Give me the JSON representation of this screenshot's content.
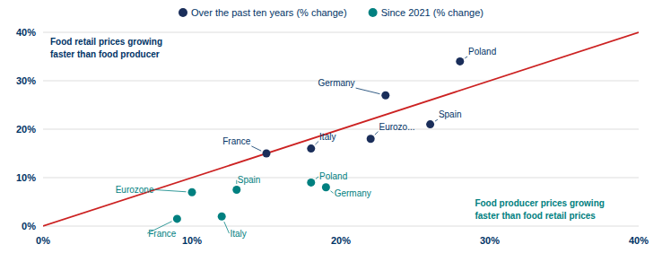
{
  "chart_data": {
    "type": "scatter",
    "color": "#003366",
    "series": [
      {
        "type": "line",
        "color": "#cc2222",
        "x": [
          0,
          40
        ],
        "values": [
          0,
          40
        ]
      },
      {
        "name": "Over the past ten years (% change)",
        "color": "#1a2e5a",
        "x": [
          15,
          18,
          22,
          26,
          23,
          28
        ],
        "values": [
          15,
          16,
          18,
          21,
          27,
          34
        ],
        "labels": [
          "France",
          "Italy",
          "Eurozo...",
          "Spain",
          "Germany",
          "Poland"
        ]
      },
      {
        "name": "Since 2021 (% change)",
        "color": "#008080",
        "x": [
          9,
          12,
          10,
          13,
          18,
          19
        ],
        "values": [
          1.5,
          2,
          7,
          7.5,
          9,
          8
        ],
        "labels": [
          "France",
          "Italy",
          "Eurozone",
          "Spain",
          "Poland",
          "Germany"
        ]
      }
    ],
    "annotations": [
      {
        "text": "Food retail prices growing\nfaster than food producer",
        "color": "#003366"
      },
      {
        "text": "Food producer prices growing\nfaster than food retail prices",
        "color": "#008080"
      }
    ],
    "xlim": [
      0,
      40
    ],
    "ylim": [
      0,
      40
    ],
    "xticks": [
      {
        "value": 0,
        "label": "0%"
      },
      {
        "value": 10,
        "label": "10%"
      },
      {
        "value": 20,
        "label": "20%"
      },
      {
        "value": 30,
        "label": "30%"
      },
      {
        "value": 40,
        "label": "40%"
      }
    ],
    "yticks": [
      {
        "value": 0,
        "label": "0%"
      },
      {
        "value": 10,
        "label": "10%"
      },
      {
        "value": 20,
        "label": "20%"
      },
      {
        "value": 30,
        "label": "30%"
      },
      {
        "value": 40,
        "label": "40%"
      }
    ],
    "grid": true
  }
}
